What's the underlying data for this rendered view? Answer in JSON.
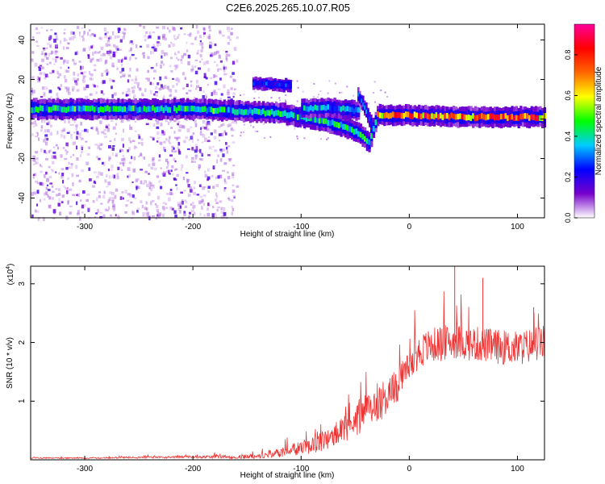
{
  "figure": {
    "title": "C2E6.2025.265.10.07.R05"
  },
  "chart_data": [
    {
      "type": "heatmap",
      "xlabel": "Height of straight line (km)",
      "ylabel": "Frequency (Hz)",
      "xlim": [
        -350,
        125
      ],
      "ylim": [
        -50,
        48
      ],
      "x_ticks": [
        -300,
        -200,
        -100,
        0,
        100
      ],
      "x_tick_labels": [
        "-300",
        "-200",
        "-100",
        "0",
        "100"
      ],
      "y_ticks": [
        -40,
        -20,
        0,
        20,
        40
      ],
      "y_tick_labels": [
        "-40",
        "-20",
        "0",
        "20",
        "40"
      ],
      "colorbar": {
        "label": "Normalized spectral amplitude",
        "range": [
          0,
          0.95
        ],
        "ticks": [
          0.0,
          0.2,
          0.4,
          0.6,
          0.8
        ],
        "tick_labels": [
          "0.0",
          "0.2",
          "0.4",
          "0.6",
          "0.8"
        ],
        "colormap": [
          "#ffffff",
          "#7700cc",
          "#0000ff",
          "#00ccff",
          "#00ff00",
          "#ffff00",
          "#ff6600",
          "#ff0000",
          "#ff0099"
        ]
      },
      "features": {
        "main_trace": {
          "x": [
            -350,
            -300,
            -250,
            -200,
            -160,
            -120,
            -100,
            -80,
            -60,
            -45,
            -38,
            -30,
            0,
            50,
            125
          ],
          "freq_hz": [
            5,
            5,
            5,
            5,
            4,
            3,
            1,
            -1,
            -4,
            -8,
            -12,
            2,
            2,
            1,
            1
          ]
        },
        "secondary_trace_1": {
          "x": [
            -145,
            -110
          ],
          "freq_hz": [
            18,
            17
          ]
        },
        "secondary_trace_2": {
          "x": [
            -100,
            -80,
            -60,
            -48
          ],
          "freq_hz": [
            5,
            6,
            5,
            4
          ]
        },
        "secondary_trace_3": {
          "x": [
            -48,
            -42,
            -36
          ],
          "freq_hz": [
            12,
            6,
            -2
          ]
        },
        "noise_region_x": [
          -350,
          -160
        ]
      }
    },
    {
      "type": "line",
      "xlabel": "Height of straight line (km)",
      "ylabel": "SNR (10 * v/v)",
      "y_multiplier": "(x10",
      "y_multiplier_exponent": "4",
      "y_multiplier_close": ")",
      "xlim": [
        -350,
        125
      ],
      "ylim": [
        0,
        3.3
      ],
      "x_ticks": [
        -300,
        -200,
        -100,
        0,
        100
      ],
      "x_tick_labels": [
        "-300",
        "-200",
        "-100",
        "0",
        "100"
      ],
      "y_ticks": [
        1,
        2,
        3
      ],
      "y_tick_labels": [
        "1",
        "2",
        "3"
      ],
      "line_color": "#ee3333",
      "x": [
        -350,
        -300,
        -250,
        -200,
        -160,
        -140,
        -120,
        -100,
        -80,
        -60,
        -50,
        -40,
        -30,
        -20,
        -10,
        0,
        10,
        20,
        30,
        40,
        50,
        60,
        80,
        100,
        125
      ],
      "y": [
        0.03,
        0.03,
        0.04,
        0.05,
        0.05,
        0.07,
        0.12,
        0.2,
        0.32,
        0.5,
        0.68,
        0.82,
        0.98,
        1.08,
        1.3,
        1.58,
        1.85,
        1.95,
        1.98,
        2.02,
        2.0,
        1.98,
        1.93,
        1.9,
        2.0
      ],
      "noise_amplitude": [
        0.01,
        0.01,
        0.015,
        0.02,
        0.03,
        0.05,
        0.08,
        0.12,
        0.18,
        0.25,
        0.3,
        0.32,
        0.33,
        0.35,
        0.32,
        0.3,
        0.3,
        0.3,
        0.3,
        0.3,
        0.3,
        0.3,
        0.3,
        0.3,
        0.3
      ],
      "peaks": [
        {
          "x": 42,
          "y": 3.3
        },
        {
          "x": 68,
          "y": 3.1
        },
        {
          "x": 115,
          "y": 2.6
        }
      ]
    }
  ]
}
